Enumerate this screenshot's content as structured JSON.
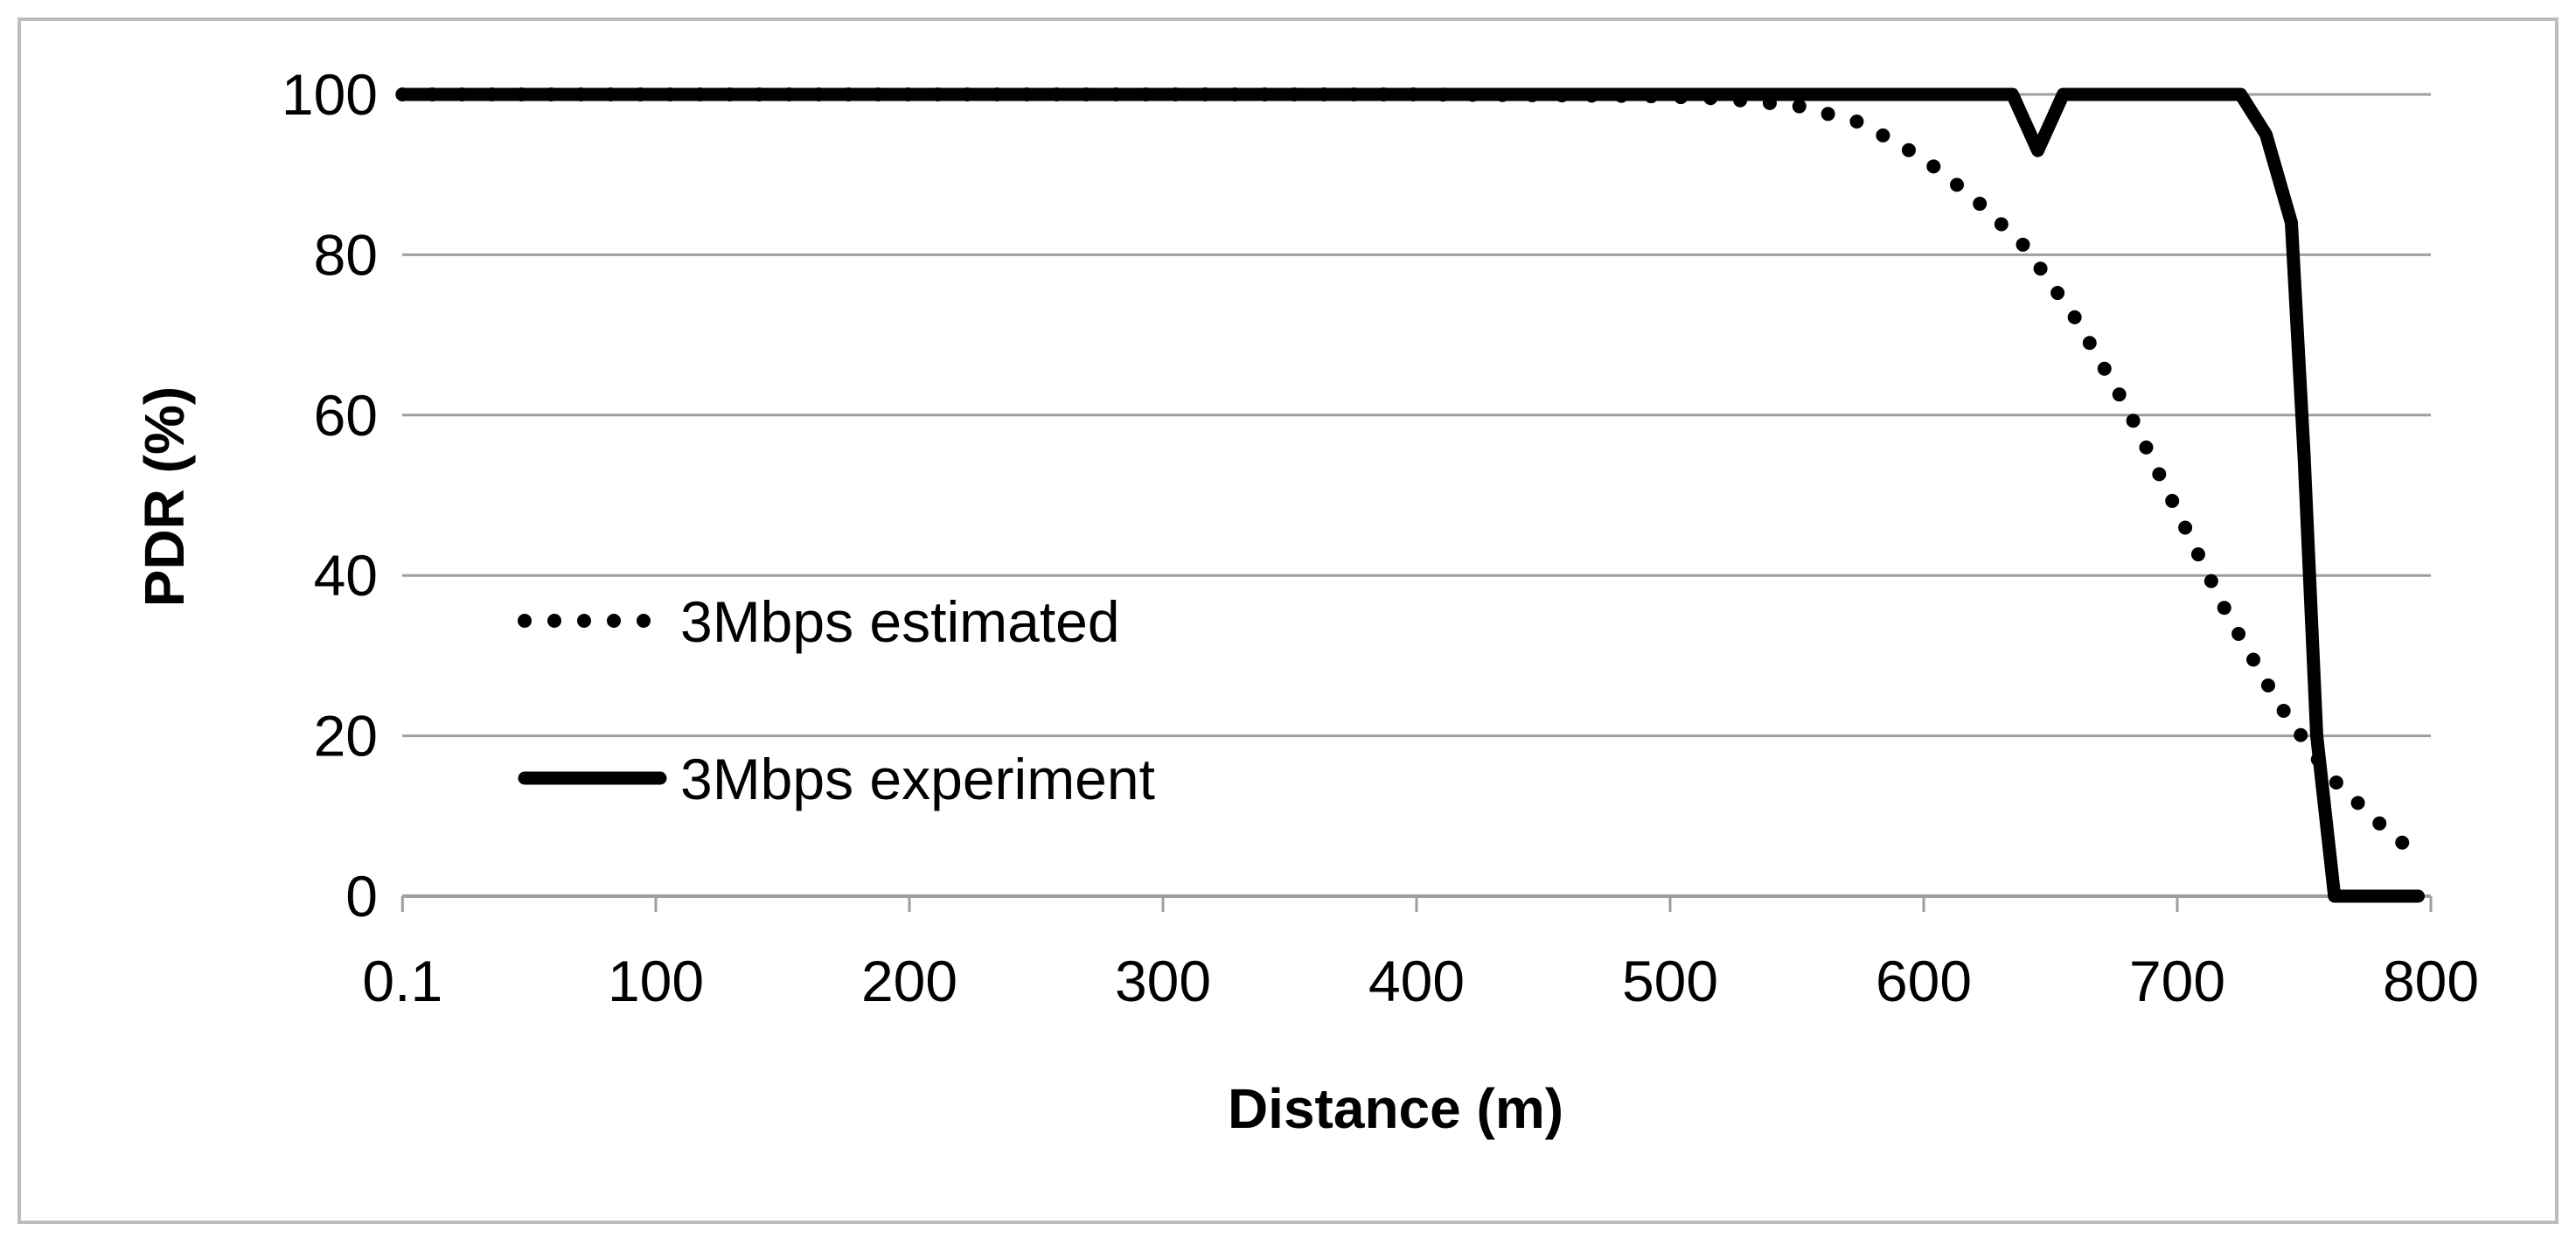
{
  "chart_data": {
    "type": "line",
    "title": "",
    "xlabel": "Distance (m)",
    "ylabel": "PDR (%)",
    "xlim": [
      0.1,
      800
    ],
    "ylim": [
      0,
      100
    ],
    "x_ticks": [
      0.1,
      100,
      200,
      300,
      400,
      500,
      600,
      700,
      800
    ],
    "x_tick_labels": [
      "0.1",
      "100",
      "200",
      "300",
      "400",
      "500",
      "600",
      "700",
      "800"
    ],
    "y_ticks": [
      0,
      20,
      40,
      60,
      80,
      100
    ],
    "y_tick_labels": [
      "0",
      "20",
      "40",
      "60",
      "80",
      "100"
    ],
    "grid": "horizontal",
    "legend_position": "lower-left",
    "series": [
      {
        "name": "3Mbps estimated",
        "style": "dotted",
        "color": "#000000",
        "x": [
          0.1,
          100,
          200,
          300,
          400,
          490,
          520,
          550,
          575,
          600,
          620,
          640,
          660,
          680,
          700,
          720,
          740,
          760,
          780,
          795
        ],
        "y": [
          100,
          100,
          100,
          100,
          100,
          99.8,
          99.5,
          98.6,
          96.5,
          92,
          87,
          81,
          72,
          61,
          48,
          35,
          24,
          15,
          9,
          5
        ]
      },
      {
        "name": "3Mbps experiment",
        "style": "solid",
        "color": "#000000",
        "x": [
          0.1,
          100,
          200,
          300,
          400,
          500,
          600,
          635,
          645,
          655,
          700,
          725,
          735,
          745,
          750,
          755,
          762,
          770,
          780,
          795
        ],
        "y": [
          100,
          100,
          100,
          100,
          100,
          100,
          100,
          100,
          93,
          100,
          100,
          100,
          95,
          84,
          55,
          20,
          0,
          0,
          0,
          0
        ]
      }
    ]
  }
}
